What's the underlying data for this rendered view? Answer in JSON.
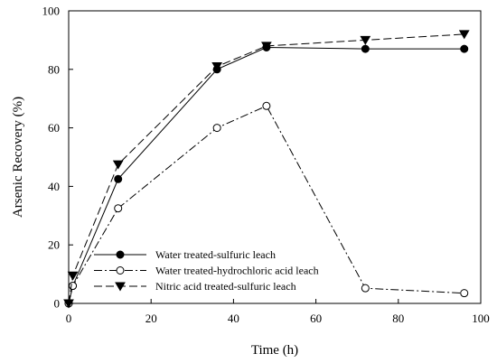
{
  "chart_data": {
    "type": "line",
    "title": "",
    "xlabel": "Time (h)",
    "ylabel": "Arsenic Recovery (%)",
    "xlim": [
      0,
      100
    ],
    "ylim": [
      0,
      100
    ],
    "xticks": [
      0,
      20,
      40,
      60,
      80,
      100
    ],
    "yticks": [
      0,
      20,
      40,
      60,
      80,
      100
    ],
    "grid": false,
    "legend_position": "bottom-left",
    "series": [
      {
        "name": "Water treated-sulfuric leach",
        "marker": "filled-circle",
        "line_style": "solid",
        "color": "#000000",
        "x": [
          0,
          1,
          12,
          36,
          48,
          72,
          96
        ],
        "y": [
          0,
          6,
          42.5,
          80,
          87.5,
          87,
          87
        ]
      },
      {
        "name": "Water treated-hydrochloric acid leach",
        "marker": "open-circle",
        "line_style": "dash-dot",
        "color": "#000000",
        "x": [
          0,
          1,
          12,
          36,
          48,
          72,
          96
        ],
        "y": [
          0,
          6,
          32.5,
          60,
          67.5,
          5.2,
          3.5
        ]
      },
      {
        "name": "Nitric acid treated-sulfuric leach",
        "marker": "filled-triangle-down",
        "line_style": "dashed",
        "color": "#000000",
        "x": [
          0,
          1,
          12,
          36,
          48,
          72,
          96
        ],
        "y": [
          0,
          9.5,
          47.5,
          81,
          88,
          90,
          92
        ]
      }
    ]
  }
}
